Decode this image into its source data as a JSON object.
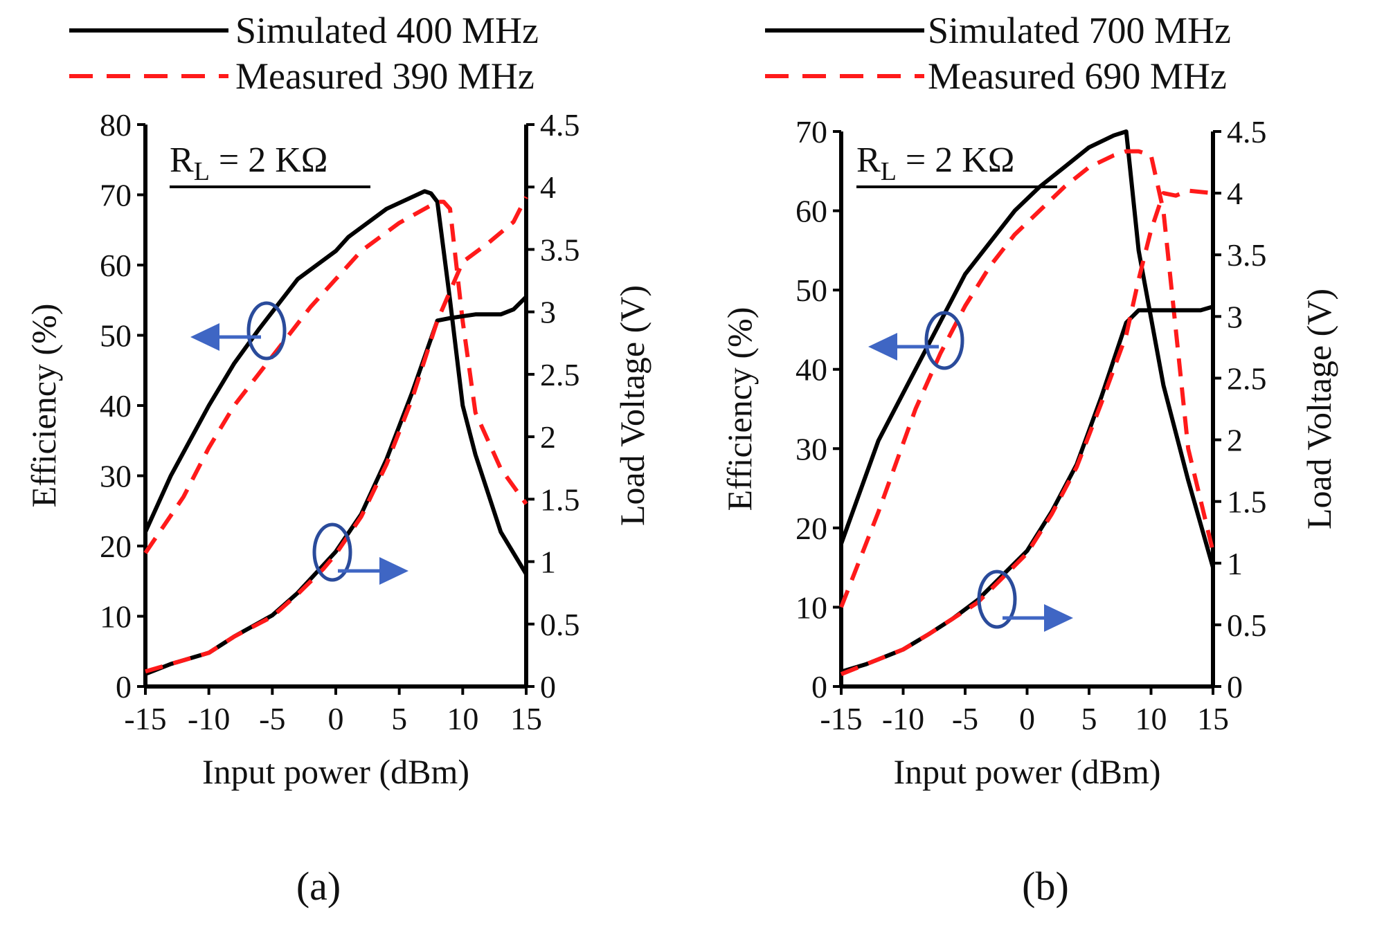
{
  "colors": {
    "simulated": "#000000",
    "measured": "#ff1a1a",
    "marker": "#3f66c4",
    "marker_ring": "#2a4b9b"
  },
  "chart_data": [
    {
      "type": "line",
      "caption": "(a)",
      "xlabel": "Input power (dBm)",
      "ylabel_left": "Efficiency (%)",
      "ylabel_right": "Load Voltage (V)",
      "xlim": [
        -15,
        15
      ],
      "ylim_left": [
        0,
        80
      ],
      "ylim_right": [
        0,
        4.5
      ],
      "xticks": [
        -15,
        -10,
        -5,
        0,
        5,
        10,
        15
      ],
      "xtick_labels": [
        "-15",
        "-10",
        "-5",
        "0",
        "5",
        "10",
        "15"
      ],
      "yticks_left": [
        0,
        10,
        20,
        30,
        40,
        50,
        60,
        70,
        80
      ],
      "ytick_labels_left": [
        "0",
        "10",
        "20",
        "30",
        "40",
        "50",
        "60",
        "70",
        "80"
      ],
      "yticks_right": [
        0,
        0.5,
        1,
        1.5,
        2,
        2.5,
        3,
        3.5,
        4,
        4.5
      ],
      "ytick_labels_right": [
        "0",
        "0.5",
        "1",
        "1.5",
        "2",
        "2.5",
        "3",
        "3.5",
        "4",
        "4.5"
      ],
      "annotation": "RL = 2 KΩ",
      "annotation_main": "R",
      "annotation_sub": "L",
      "annotation_rest": " = 2 KΩ",
      "legend": [
        {
          "label": "Simulated 400 MHz",
          "style": "solid"
        },
        {
          "label": "Measured 390 MHz",
          "style": "dashed"
        }
      ],
      "series": [
        {
          "name": "Simulated 400 MHz - Efficiency",
          "axis": "left",
          "style": "solid",
          "x": [
            -15,
            -13,
            -10,
            -8,
            -6,
            -3,
            0,
            1,
            4,
            7,
            7.5,
            8,
            9,
            10,
            11,
            13,
            15
          ],
          "y": [
            22,
            30,
            40,
            46,
            51,
            58,
            62,
            64,
            68,
            70.5,
            70.2,
            69,
            55,
            40,
            33,
            22,
            16
          ]
        },
        {
          "name": "Measured 390 MHz - Efficiency",
          "axis": "left",
          "style": "dashed",
          "x": [
            -15,
            -12,
            -10,
            -8,
            -5,
            -2,
            0,
            2,
            5,
            8,
            8.5,
            9,
            10,
            11,
            13,
            15
          ],
          "y": [
            19,
            27,
            34,
            40,
            47,
            54,
            58,
            62,
            66,
            69,
            69,
            68,
            52,
            39,
            31,
            26
          ]
        },
        {
          "name": "Simulated 400 MHz - Load Voltage",
          "axis": "right",
          "style": "solid",
          "x": [
            -15,
            -13,
            -10,
            -8,
            -5,
            -3,
            -1,
            0,
            2,
            4,
            6,
            8,
            9,
            11,
            13,
            14,
            15
          ],
          "y": [
            0.1,
            0.18,
            0.27,
            0.4,
            0.57,
            0.75,
            0.97,
            1.08,
            1.38,
            1.82,
            2.35,
            2.93,
            2.95,
            2.98,
            2.98,
            3.02,
            3.12
          ]
        },
        {
          "name": "Measured 390 MHz - Load Voltage",
          "axis": "right",
          "style": "dashed",
          "x": [
            -15,
            -13,
            -10,
            -8,
            -5,
            -3,
            -1,
            0,
            2,
            4,
            6,
            8,
            10,
            12,
            14,
            15
          ],
          "y": [
            0.12,
            0.18,
            0.27,
            0.4,
            0.56,
            0.74,
            0.94,
            1.06,
            1.36,
            1.78,
            2.3,
            2.93,
            3.4,
            3.55,
            3.72,
            3.92
          ]
        }
      ],
      "markers": [
        {
          "target": "efficiency",
          "direction": "left"
        },
        {
          "target": "load_voltage",
          "direction": "right"
        }
      ]
    },
    {
      "type": "line",
      "caption": "(b)",
      "xlabel": "Input power (dBm)",
      "ylabel_left": "Efficiency (%)",
      "ylabel_right": "Load Voltage (V)",
      "xlim": [
        -15,
        15
      ],
      "ylim_left": [
        0,
        70
      ],
      "ylim_right": [
        0,
        4.5
      ],
      "xticks": [
        -15,
        -10,
        -5,
        0,
        5,
        10,
        15
      ],
      "xtick_labels": [
        "-15",
        "-10",
        "-5",
        "0",
        "5",
        "10",
        "15"
      ],
      "yticks_left": [
        0,
        10,
        20,
        30,
        40,
        50,
        60,
        70
      ],
      "ytick_labels_left": [
        "0",
        "10",
        "20",
        "30",
        "40",
        "50",
        "60",
        "70"
      ],
      "yticks_right": [
        0,
        0.5,
        1,
        1.5,
        2,
        2.5,
        3,
        3.5,
        4,
        4.5
      ],
      "ytick_labels_right": [
        "0",
        "0.5",
        "1",
        "1.5",
        "2",
        "2.5",
        "3",
        "3.5",
        "4",
        "4.5"
      ],
      "annotation": "RL = 2 KΩ",
      "annotation_main": "R",
      "annotation_sub": "L",
      "annotation_rest": " = 2 KΩ",
      "legend": [
        {
          "label": "Simulated 700 MHz",
          "style": "solid"
        },
        {
          "label": "Measured 690 MHz",
          "style": "dashed"
        }
      ],
      "series": [
        {
          "name": "Simulated 700 MHz - Efficiency",
          "axis": "left",
          "style": "solid",
          "x": [
            -15,
            -12,
            -9,
            -7,
            -5,
            -3,
            -1,
            1,
            3,
            5,
            7,
            8,
            9,
            11,
            13,
            15
          ],
          "y": [
            18,
            31,
            40,
            46,
            52,
            56,
            60,
            63,
            65.5,
            68,
            69.5,
            70,
            55,
            38,
            26,
            15
          ]
        },
        {
          "name": "Measured 690 MHz - Efficiency",
          "axis": "left",
          "style": "dashed",
          "x": [
            -15,
            -12,
            -9,
            -7,
            -5,
            -3,
            -1,
            1,
            3,
            5,
            7,
            8,
            9,
            10,
            11,
            12,
            13,
            15
          ],
          "y": [
            10,
            22,
            35,
            42,
            48,
            53,
            57,
            60,
            63,
            65.5,
            67,
            67.5,
            67.5,
            67,
            60,
            45,
            30,
            17
          ]
        },
        {
          "name": "Simulated 700 MHz - Load Voltage",
          "axis": "right",
          "style": "solid",
          "x": [
            -15,
            -13,
            -10,
            -8,
            -6,
            -4,
            -2,
            0,
            2,
            4,
            6,
            8,
            9,
            11,
            13,
            14,
            15
          ],
          "y": [
            0.12,
            0.18,
            0.3,
            0.42,
            0.55,
            0.7,
            0.9,
            1.1,
            1.42,
            1.8,
            2.35,
            2.95,
            3.05,
            3.05,
            3.05,
            3.05,
            3.08
          ]
        },
        {
          "name": "Measured 690 MHz - Load Voltage",
          "axis": "right",
          "style": "dashed",
          "x": [
            -15,
            -13,
            -10,
            -8,
            -6,
            -4,
            -2,
            0,
            2,
            4,
            6,
            8,
            9,
            10,
            11,
            12,
            13,
            15
          ],
          "y": [
            0.1,
            0.18,
            0.3,
            0.42,
            0.55,
            0.68,
            0.88,
            1.08,
            1.4,
            1.78,
            2.3,
            2.85,
            3.3,
            3.7,
            4.0,
            3.98,
            4.02,
            4.0
          ]
        }
      ],
      "markers": [
        {
          "target": "efficiency",
          "direction": "left"
        },
        {
          "target": "load_voltage",
          "direction": "right"
        }
      ]
    }
  ]
}
